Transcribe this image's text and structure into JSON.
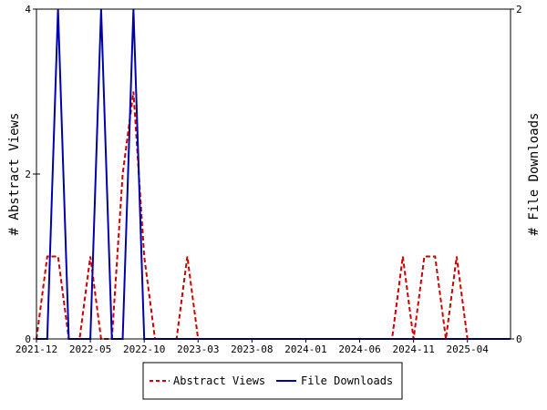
{
  "chart_data": {
    "type": "line",
    "title": "",
    "x_ticks": [
      "2021-12",
      "2022-05",
      "2022-10",
      "2023-03",
      "2023-08",
      "2024-01",
      "2024-06",
      "2024-11",
      "2025-04"
    ],
    "y_left": {
      "label": "# Abstract Views",
      "lim": [
        0,
        4
      ],
      "ticks": [
        "0",
        "2",
        "4"
      ]
    },
    "y_right": {
      "label": "# File Downloads",
      "lim": [
        0,
        2
      ],
      "ticks": [
        "0",
        "2"
      ]
    },
    "x_range": [
      "2021-12",
      "2025-08"
    ],
    "grid": false,
    "legend_position": "bottom",
    "series": [
      {
        "name": "Abstract Views",
        "axis": "left",
        "color": "#cc0000",
        "style": "dashed",
        "points": [
          [
            "2021-12",
            0
          ],
          [
            "2022-01",
            1
          ],
          [
            "2022-02",
            1
          ],
          [
            "2022-03",
            0
          ],
          [
            "2022-04",
            0
          ],
          [
            "2022-05",
            1
          ],
          [
            "2022-06",
            0
          ],
          [
            "2022-07",
            0
          ],
          [
            "2022-08",
            2
          ],
          [
            "2022-09",
            3
          ],
          [
            "2022-10",
            1
          ],
          [
            "2022-11",
            0
          ],
          [
            "2022-12",
            0
          ],
          [
            "2023-01",
            0
          ],
          [
            "2023-02",
            1
          ],
          [
            "2023-03",
            0
          ],
          [
            "2023-04",
            0
          ],
          [
            "2023-05",
            0
          ],
          [
            "2023-06",
            0
          ],
          [
            "2023-07",
            0
          ],
          [
            "2023-08",
            0
          ],
          [
            "2023-09",
            0
          ],
          [
            "2023-10",
            0
          ],
          [
            "2023-11",
            0
          ],
          [
            "2023-12",
            0
          ],
          [
            "2024-01",
            0
          ],
          [
            "2024-02",
            0
          ],
          [
            "2024-03",
            0
          ],
          [
            "2024-04",
            0
          ],
          [
            "2024-05",
            0
          ],
          [
            "2024-06",
            0
          ],
          [
            "2024-07",
            0
          ],
          [
            "2024-08",
            0
          ],
          [
            "2024-09",
            0
          ],
          [
            "2024-10",
            1
          ],
          [
            "2024-11",
            0
          ],
          [
            "2024-12",
            1
          ],
          [
            "2025-01",
            1
          ],
          [
            "2025-02",
            0
          ],
          [
            "2025-03",
            1
          ],
          [
            "2025-04",
            0
          ],
          [
            "2025-05",
            0
          ],
          [
            "2025-06",
            0
          ],
          [
            "2025-07",
            0
          ],
          [
            "2025-08",
            0
          ]
        ]
      },
      {
        "name": "File Downloads",
        "axis": "right",
        "color": "#0000aa",
        "style": "solid",
        "points": [
          [
            "2021-12",
            0
          ],
          [
            "2022-01",
            0
          ],
          [
            "2022-02",
            2
          ],
          [
            "2022-03",
            0
          ],
          [
            "2022-04",
            0
          ],
          [
            "2022-05",
            0
          ],
          [
            "2022-06",
            2
          ],
          [
            "2022-07",
            0
          ],
          [
            "2022-08",
            0
          ],
          [
            "2022-09",
            2
          ],
          [
            "2022-10",
            0
          ],
          [
            "2022-11",
            0
          ],
          [
            "2022-12",
            0
          ],
          [
            "2023-01",
            0
          ],
          [
            "2023-02",
            0
          ],
          [
            "2023-03",
            0
          ],
          [
            "2023-04",
            0
          ],
          [
            "2023-05",
            0
          ],
          [
            "2023-06",
            0
          ],
          [
            "2023-07",
            0
          ],
          [
            "2023-08",
            0
          ],
          [
            "2023-09",
            0
          ],
          [
            "2023-10",
            0
          ],
          [
            "2023-11",
            0
          ],
          [
            "2023-12",
            0
          ],
          [
            "2024-01",
            0
          ],
          [
            "2024-02",
            0
          ],
          [
            "2024-03",
            0
          ],
          [
            "2024-04",
            0
          ],
          [
            "2024-05",
            0
          ],
          [
            "2024-06",
            0
          ],
          [
            "2024-07",
            0
          ],
          [
            "2024-08",
            0
          ],
          [
            "2024-09",
            0
          ],
          [
            "2024-10",
            0
          ],
          [
            "2024-11",
            0
          ],
          [
            "2024-12",
            0
          ],
          [
            "2025-01",
            0
          ],
          [
            "2025-02",
            0
          ],
          [
            "2025-03",
            0
          ],
          [
            "2025-04",
            0
          ],
          [
            "2025-05",
            0
          ],
          [
            "2025-06",
            0
          ],
          [
            "2025-07",
            0
          ],
          [
            "2025-08",
            0
          ]
        ]
      }
    ]
  }
}
